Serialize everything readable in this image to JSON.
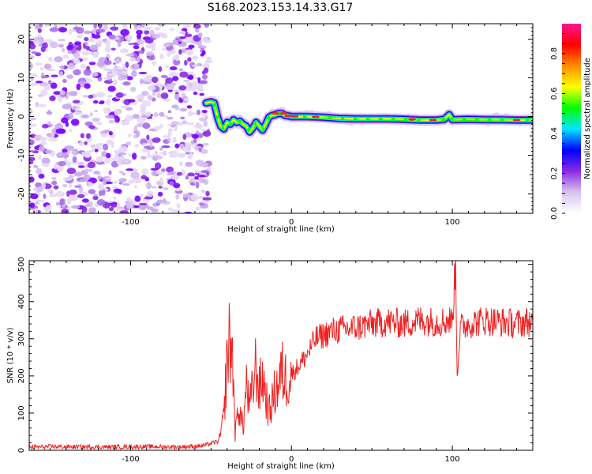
{
  "title": "S168.2023.153.14.33.G17",
  "chart_data": [
    {
      "type": "heatmap",
      "xlabel": "Height of straight line (km)",
      "ylabel": "Frequency (Hz)",
      "xlim": [
        -163,
        150
      ],
      "ylim": [
        -25,
        24
      ],
      "xticks": [
        -100,
        0,
        100
      ],
      "yticks": [
        -20,
        -10,
        0,
        10,
        20
      ],
      "noise_region_x": [
        -163,
        -53
      ],
      "ridge": {
        "x": [
          -53,
          -50,
          -48,
          -46,
          -44,
          -42,
          -40,
          -38,
          -36,
          -34,
          -32,
          -30,
          -28,
          -26,
          -24,
          -22,
          -20,
          -18,
          -16,
          -14,
          -12,
          -10,
          -8,
          -6,
          -4,
          -2,
          0,
          10,
          20,
          30,
          40,
          50,
          60,
          70,
          80,
          90,
          95,
          98,
          100,
          110,
          120,
          130,
          140,
          150
        ],
        "y": [
          3.5,
          3.8,
          3.5,
          0,
          -2.5,
          -3.2,
          -1.5,
          -2.0,
          -0.8,
          -1.5,
          -1.2,
          -2.0,
          -2.5,
          -4.0,
          -3.0,
          -1.5,
          -2.5,
          -3.5,
          -2.0,
          -0.2,
          0.3,
          0.5,
          0.8,
          0.8,
          0.3,
          0.2,
          0.0,
          0.0,
          -0.2,
          -0.5,
          -0.6,
          -0.6,
          -0.6,
          -0.7,
          -0.9,
          -0.9,
          -0.7,
          0.5,
          -0.8,
          -0.7,
          -0.8,
          -0.8,
          -0.9,
          -0.9
        ]
      },
      "colorbar": {
        "label": "Normalized spectral amplitude",
        "range": [
          0,
          0.95
        ],
        "ticks": [
          0.0,
          0.2,
          0.4,
          0.6,
          0.8
        ],
        "colors": [
          "#ffffff",
          "#d9c4f0",
          "#8a2be2",
          "#0000ff",
          "#00e5ff",
          "#00ff00",
          "#ffff00",
          "#ff8c00",
          "#ff0000",
          "#ff1493"
        ]
      }
    },
    {
      "type": "line",
      "xlabel": "Height of straight line (km)",
      "ylabel": "SNR (10 * v/v)",
      "xlim": [
        -163,
        150
      ],
      "ylim": [
        0,
        510
      ],
      "xticks": [
        -100,
        0,
        100
      ],
      "yticks": [
        0,
        100,
        200,
        300,
        400,
        500
      ],
      "line_color": "#ee2222",
      "series": [
        {
          "x": [
            -163,
            -150,
            -130,
            -110,
            -90,
            -70,
            -55,
            -45,
            -42,
            -40,
            -38,
            -36,
            -35,
            -33,
            -30,
            -28,
            -26,
            -24,
            -22,
            -20,
            -18,
            -16,
            -14,
            -12,
            -10,
            -8,
            -6,
            -4,
            -2,
            0,
            5,
            10,
            15,
            20,
            25,
            30,
            40,
            50,
            60,
            70,
            80,
            90,
            100,
            101,
            102,
            103,
            105,
            110,
            120,
            130,
            140,
            145,
            150
          ],
          "y": [
            8,
            10,
            9,
            9,
            10,
            9,
            12,
            25,
            90,
            250,
            300,
            200,
            40,
            120,
            60,
            180,
            110,
            170,
            230,
            160,
            200,
            150,
            100,
            130,
            160,
            180,
            210,
            190,
            200,
            205,
            230,
            260,
            300,
            310,
            320,
            325,
            330,
            340,
            345,
            340,
            350,
            345,
            350,
            420,
            510,
            210,
            330,
            340,
            350,
            345,
            340,
            345,
            345
          ]
        }
      ]
    }
  ]
}
